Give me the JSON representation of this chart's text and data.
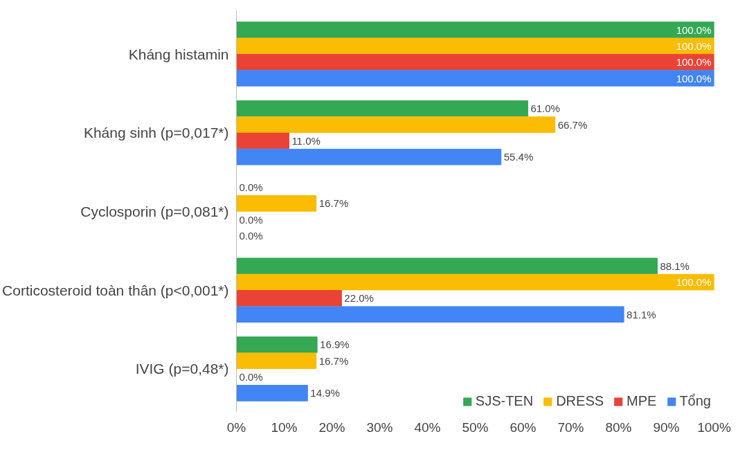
{
  "chart_data": {
    "type": "bar",
    "orientation": "horizontal",
    "categories": [
      "Kháng histamin",
      "Kháng sinh (p=0,017*)",
      "Cyclosporin (p=0,081*)",
      "Corticosteroid toàn thân (p<0,001*)",
      "IVIG (p=0,48*)"
    ],
    "series": [
      {
        "name": "SJS-TEN",
        "color": "#34a853",
        "values": [
          100,
          61.0,
          0,
          88.1,
          16.9
        ],
        "value_labels": [
          "100.0%",
          "61.0%",
          "0.0%",
          "88.1%",
          "16.9%"
        ]
      },
      {
        "name": "DRESS",
        "color": "#fbbc04",
        "values": [
          100,
          66.7,
          16.7,
          100,
          16.7
        ],
        "value_labels": [
          "100.0%",
          "66.7%",
          "16.7%",
          "100.0%",
          "16.7%"
        ]
      },
      {
        "name": "MPE",
        "color": "#ea4335",
        "values": [
          100,
          11.0,
          0,
          22.0,
          0
        ],
        "value_labels": [
          "100.0%",
          "11.0%",
          "0.0%",
          "22.0%",
          "0.0%"
        ]
      },
      {
        "name": "Tổng",
        "color": "#4285f4",
        "values": [
          100,
          55.4,
          0,
          81.1,
          14.9
        ],
        "value_labels": [
          "100.0%",
          "55.4%",
          "0.0%",
          "81.1%",
          "14.9%"
        ]
      }
    ],
    "xlim": [
      0,
      100
    ],
    "xticks": [
      {
        "value": 0,
        "label": "0%"
      },
      {
        "value": 10,
        "label": "10%"
      },
      {
        "value": 20,
        "label": "20%"
      },
      {
        "value": 30,
        "label": "30%"
      },
      {
        "value": 40,
        "label": "40%"
      },
      {
        "value": 50,
        "label": "50%"
      },
      {
        "value": 60,
        "label": "60%"
      },
      {
        "value": 70,
        "label": "70%"
      },
      {
        "value": 80,
        "label": "80%"
      },
      {
        "value": 90,
        "label": "90%"
      },
      {
        "value": 100,
        "label": "100%"
      }
    ],
    "grid": false,
    "legend": "bottom right"
  }
}
